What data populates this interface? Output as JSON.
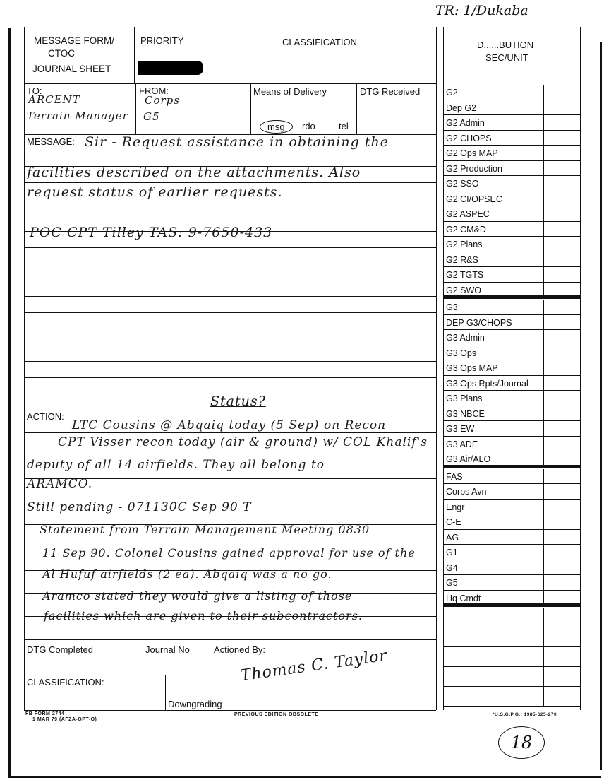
{
  "header": {
    "form_title_line1": "MESSAGE FORM/",
    "form_title_line2": "CTOC",
    "form_title_line3": "JOURNAL SHEET",
    "priority_label": "PRIORITY",
    "classification_label": "CLASSIFICATION",
    "distribution_label_line1": "D......BUTION",
    "distribution_label_line2": "SEC/UNIT",
    "top_annotation": "TR: 1/Dukaba"
  },
  "routing": {
    "to_label": "TO:",
    "to_value_line1": "ARCENT",
    "to_value_line2": "Terrain Manager",
    "from_label": "FROM:",
    "from_value_line1": "Corps",
    "from_value_line2": "G5",
    "means_label": "Means of Delivery",
    "means_options": [
      "msg",
      "rdo",
      "tel"
    ],
    "means_selected": "msg",
    "dtg_received_label": "DTG Received"
  },
  "message": {
    "label": "MESSAGE:",
    "lines": [
      "Sir - Request assistance in obtaining the",
      "facilities described on the attachments. Also",
      "request status of earlier requests.",
      "POC CPT Tilley TAS: 9-7650-433"
    ],
    "status_note": "Status?"
  },
  "action": {
    "label": "ACTION:",
    "lines": [
      "LTC Cousins @ Abqaiq today (5 Sep) on Recon",
      "CPT Visser recon today (air & ground) w/ COL Khalif's",
      "deputy of all 14 airfields. They all belong to",
      "ARAMCO.",
      "Still pending - 071130C Sep 90 T",
      "Statement from Terrain Management Meeting 0830",
      "11 Sep 90. Colonel Cousins gained approval for use of the",
      "Al Hufuf airfields (2 ea). Abqaiq was a no go.",
      "Aramco stated they would give a listing of those",
      "facilities which are given to their subcontractors."
    ]
  },
  "footer_fields": {
    "dtg_completed_label": "DTG Completed",
    "journal_no_label": "Journal No",
    "actioned_by_label": "Actioned By:",
    "signature": "Thomas C. Taylor",
    "classification_label": "CLASSIFICATION:",
    "downgrading_label": "Downgrading"
  },
  "form_footer": {
    "form_id_line1": "FB FORM 2744",
    "form_id_line2": "1 MAR 79 (AFZA-OPT-O)",
    "edition_note": "PREVIOUS EDITION OBSOLETE",
    "gpo": "*U.S.G.P.O.: 1985-625-270",
    "page_number": "18"
  },
  "distribution": {
    "groups": [
      [
        "G2",
        "Dep  G2",
        "G2  Admin",
        "G2  CHOPS",
        "G2  Ops  MAP",
        "G2  Production",
        "G2  SSO",
        "G2  CI/OPSEC",
        "G2  ASPEC",
        "G2  CM&D",
        "G2  Plans",
        "G2  R&S",
        "G2  TGTS",
        "G2  SWO"
      ],
      [
        "G3",
        "DEP  G3/CHOPS",
        "G3  Admin",
        "G3  Ops",
        "G3  Ops  MAP",
        "G3 Ops Rpts/Journal",
        "G3  Plans",
        "G3  NBCE",
        "G3  EW",
        "G3  ADE",
        "G3  Air/ALO"
      ],
      [
        "FAS",
        "Corps  Avn",
        "Engr",
        "C-E",
        "AG",
        "G1",
        "G4",
        "G5",
        "Hq  Cmdt"
      ]
    ]
  }
}
